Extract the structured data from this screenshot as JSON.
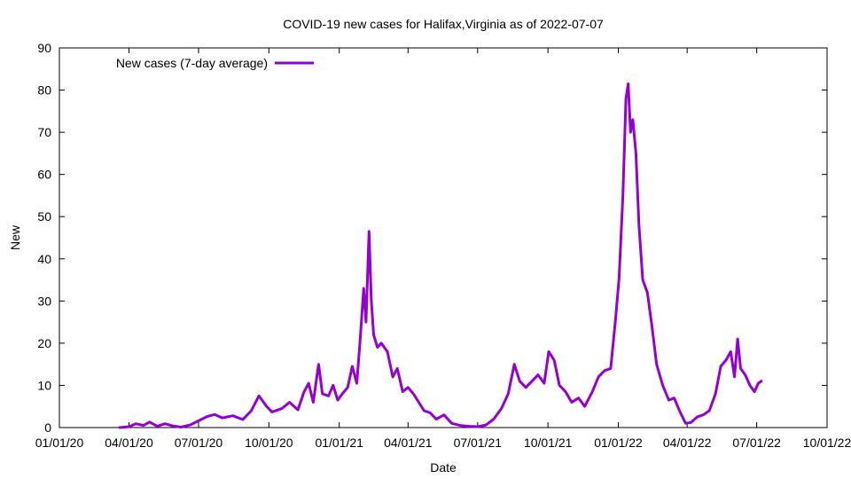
{
  "chart_data": {
    "type": "line",
    "title": "COVID-19 new cases for Halifax,Virginia as of 2022-07-07",
    "xlabel": "Date",
    "ylabel": "New",
    "xlim": [
      "2020-01-01",
      "2022-10-01"
    ],
    "ylim": [
      0,
      90
    ],
    "x_ticks": [
      "01/01/20",
      "04/01/20",
      "07/01/20",
      "10/01/20",
      "01/01/21",
      "04/01/21",
      "07/01/21",
      "10/01/21",
      "01/01/22",
      "04/01/22",
      "07/01/22",
      "10/01/22"
    ],
    "y_ticks": [
      "0",
      "10",
      "20",
      "30",
      "40",
      "50",
      "60",
      "70",
      "80",
      "90"
    ],
    "grid": false,
    "legend_position": "top-left",
    "series": [
      {
        "name": "New cases (7-day average)",
        "color": "#9400d3",
        "points": [
          [
            "2020-03-20",
            0.0
          ],
          [
            "2020-04-01",
            0.2
          ],
          [
            "2020-04-10",
            0.9
          ],
          [
            "2020-04-20",
            0.5
          ],
          [
            "2020-04-28",
            1.3
          ],
          [
            "2020-05-08",
            0.3
          ],
          [
            "2020-05-18",
            0.9
          ],
          [
            "2020-05-28",
            0.4
          ],
          [
            "2020-06-08",
            0.1
          ],
          [
            "2020-06-20",
            0.6
          ],
          [
            "2020-07-01",
            1.6
          ],
          [
            "2020-07-12",
            2.6
          ],
          [
            "2020-07-22",
            3.1
          ],
          [
            "2020-08-01",
            2.3
          ],
          [
            "2020-08-15",
            2.8
          ],
          [
            "2020-08-28",
            1.9
          ],
          [
            "2020-09-08",
            4.0
          ],
          [
            "2020-09-18",
            7.5
          ],
          [
            "2020-09-28",
            5.0
          ],
          [
            "2020-10-05",
            3.7
          ],
          [
            "2020-10-18",
            4.5
          ],
          [
            "2020-10-28",
            6.0
          ],
          [
            "2020-11-08",
            4.2
          ],
          [
            "2020-11-16",
            8.5
          ],
          [
            "2020-11-22",
            10.5
          ],
          [
            "2020-11-28",
            6.0
          ],
          [
            "2020-12-05",
            15.0
          ],
          [
            "2020-12-10",
            8.0
          ],
          [
            "2020-12-18",
            7.5
          ],
          [
            "2020-12-24",
            10.0
          ],
          [
            "2020-12-30",
            6.5
          ],
          [
            "2021-01-05",
            8.0
          ],
          [
            "2021-01-12",
            9.5
          ],
          [
            "2021-01-18",
            14.5
          ],
          [
            "2021-01-24",
            10.5
          ],
          [
            "2021-01-28",
            20.0
          ],
          [
            "2021-02-02",
            33.0
          ],
          [
            "2021-02-05",
            25.0
          ],
          [
            "2021-02-09",
            46.5
          ],
          [
            "2021-02-12",
            30.0
          ],
          [
            "2021-02-15",
            22.0
          ],
          [
            "2021-02-20",
            19.0
          ],
          [
            "2021-02-25",
            20.0
          ],
          [
            "2021-03-05",
            18.0
          ],
          [
            "2021-03-12",
            12.0
          ],
          [
            "2021-03-18",
            14.0
          ],
          [
            "2021-03-25",
            8.5
          ],
          [
            "2021-04-01",
            9.5
          ],
          [
            "2021-04-08",
            8.0
          ],
          [
            "2021-04-15",
            6.0
          ],
          [
            "2021-04-22",
            4.0
          ],
          [
            "2021-04-30",
            3.5
          ],
          [
            "2021-05-08",
            2.0
          ],
          [
            "2021-05-18",
            3.0
          ],
          [
            "2021-05-28",
            1.0
          ],
          [
            "2021-06-08",
            0.5
          ],
          [
            "2021-06-20",
            0.3
          ],
          [
            "2021-07-01",
            0.2
          ],
          [
            "2021-07-12",
            0.6
          ],
          [
            "2021-07-22",
            2.0
          ],
          [
            "2021-08-01",
            4.5
          ],
          [
            "2021-08-10",
            8.0
          ],
          [
            "2021-08-18",
            15.0
          ],
          [
            "2021-08-25",
            11.0
          ],
          [
            "2021-09-02",
            9.5
          ],
          [
            "2021-09-10",
            11.0
          ],
          [
            "2021-09-18",
            12.5
          ],
          [
            "2021-09-26",
            10.5
          ],
          [
            "2021-10-02",
            18.0
          ],
          [
            "2021-10-09",
            16.0
          ],
          [
            "2021-10-16",
            10.0
          ],
          [
            "2021-10-24",
            8.5
          ],
          [
            "2021-11-01",
            6.0
          ],
          [
            "2021-11-10",
            7.0
          ],
          [
            "2021-11-18",
            5.0
          ],
          [
            "2021-11-28",
            8.5
          ],
          [
            "2021-12-06",
            12.0
          ],
          [
            "2021-12-14",
            13.5
          ],
          [
            "2021-12-22",
            14.0
          ],
          [
            "2021-12-28",
            25.0
          ],
          [
            "2022-01-02",
            35.5
          ],
          [
            "2022-01-07",
            55.0
          ],
          [
            "2022-01-11",
            78.0
          ],
          [
            "2022-01-14",
            81.5
          ],
          [
            "2022-01-17",
            70.0
          ],
          [
            "2022-01-20",
            73.0
          ],
          [
            "2022-01-24",
            65.0
          ],
          [
            "2022-01-28",
            48.0
          ],
          [
            "2022-02-02",
            35.0
          ],
          [
            "2022-02-08",
            32.0
          ],
          [
            "2022-02-14",
            24.0
          ],
          [
            "2022-02-20",
            15.0
          ],
          [
            "2022-02-28",
            10.0
          ],
          [
            "2022-03-08",
            6.5
          ],
          [
            "2022-03-15",
            7.0
          ],
          [
            "2022-03-22",
            4.0
          ],
          [
            "2022-03-30",
            1.0
          ],
          [
            "2022-04-06",
            1.2
          ],
          [
            "2022-04-14",
            2.5
          ],
          [
            "2022-04-22",
            3.0
          ],
          [
            "2022-04-30",
            4.0
          ],
          [
            "2022-05-08",
            8.0
          ],
          [
            "2022-05-15",
            14.5
          ],
          [
            "2022-05-22",
            16.0
          ],
          [
            "2022-05-28",
            18.0
          ],
          [
            "2022-06-02",
            12.0
          ],
          [
            "2022-06-06",
            21.0
          ],
          [
            "2022-06-10",
            14.0
          ],
          [
            "2022-06-16",
            12.5
          ],
          [
            "2022-06-22",
            10.0
          ],
          [
            "2022-06-28",
            8.5
          ],
          [
            "2022-07-03",
            10.5
          ],
          [
            "2022-07-07",
            11.0
          ]
        ]
      }
    ]
  }
}
